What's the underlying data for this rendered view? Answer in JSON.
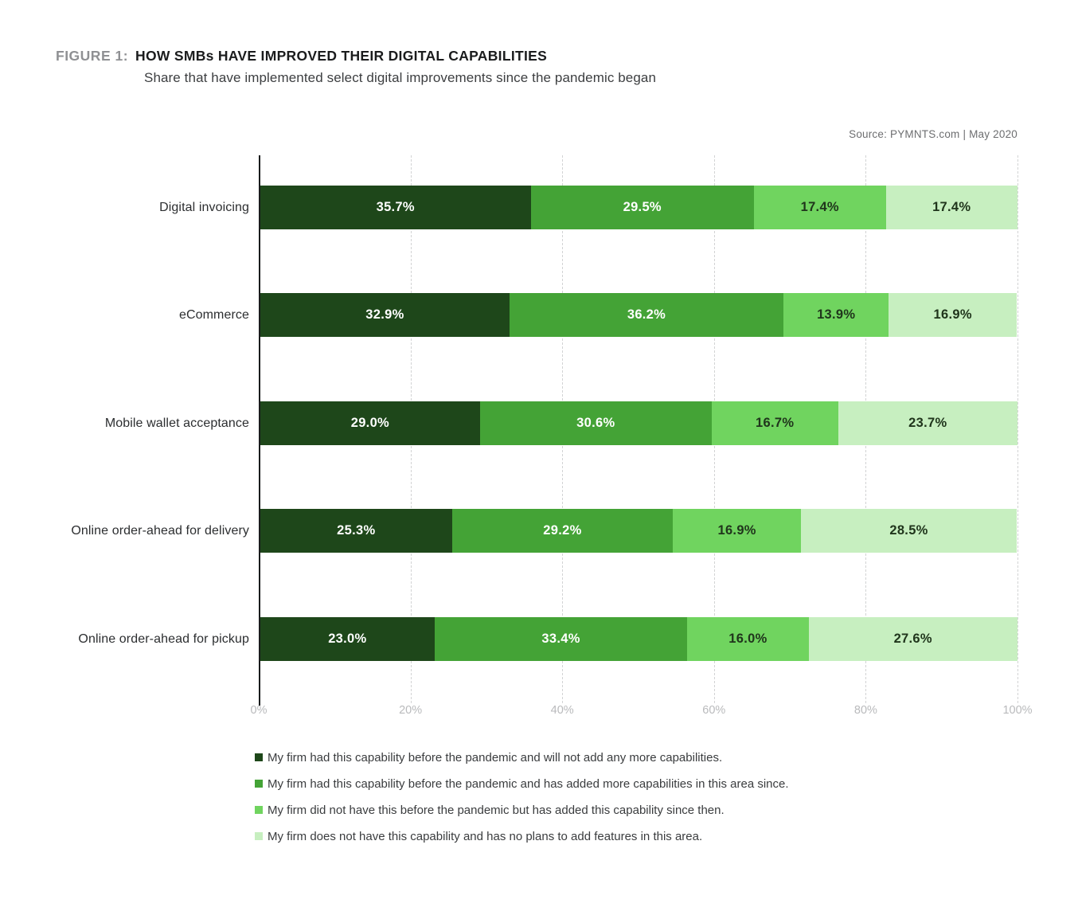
{
  "figure": {
    "label": "FIGURE 1:",
    "title": "HOW SMBs HAVE IMPROVED THEIR DIGITAL CAPABILITIES",
    "subtitle": "Share that have implemented select digital improvements since the pandemic began"
  },
  "source": "Source: PYMNTS.com  |  May 2020",
  "colors": {
    "axis": "#191b1c",
    "gridline": "#d2d3d4",
    "tick_label": "#b9babc",
    "segment_dark": "#1e471a",
    "segment_medium": "#44a336",
    "segment_light": "#70d45f",
    "segment_pale": "#c7efc0"
  },
  "chart_data": {
    "type": "bar",
    "orientation": "horizontal",
    "stacked": true,
    "title": "HOW SMBs HAVE IMPROVED THEIR DIGITAL CAPABILITIES",
    "subtitle": "Share that have implemented select digital improvements since the pandemic began",
    "categories": [
      "Digital invoicing",
      "eCommerce",
      "Mobile wallet acceptance",
      "Online order-ahead for delivery",
      "Online order-ahead for pickup"
    ],
    "series": [
      {
        "name": "My firm had this capability before the pandemic and will not add any more capabilities.",
        "color": "#1e471a",
        "label_color": "#ffffff",
        "values": [
          35.7,
          32.9,
          29.0,
          25.3,
          23.0
        ]
      },
      {
        "name": "My firm had this capability before the pandemic and has added more capabilities in this area since.",
        "color": "#44a336",
        "label_color": "#ffffff",
        "values": [
          29.5,
          36.2,
          30.6,
          29.2,
          33.4
        ]
      },
      {
        "name": "My firm did not have this before the pandemic but has added this capability since then.",
        "color": "#70d45f",
        "label_color": "#20351c",
        "values": [
          17.4,
          13.9,
          16.7,
          16.9,
          16.0
        ]
      },
      {
        "name": "My firm does not have this capability and has no plans to add features in this area.",
        "color": "#c7efc0",
        "label_color": "#20351c",
        "values": [
          17.4,
          16.9,
          23.7,
          28.5,
          27.6
        ]
      }
    ],
    "value_suffix": "%",
    "x_ticks": [
      "0%",
      "20%",
      "40%",
      "60%",
      "80%",
      "100%"
    ],
    "xlim": [
      0,
      100
    ],
    "grid": "dashed-vertical",
    "legend_position": "bottom-left"
  }
}
